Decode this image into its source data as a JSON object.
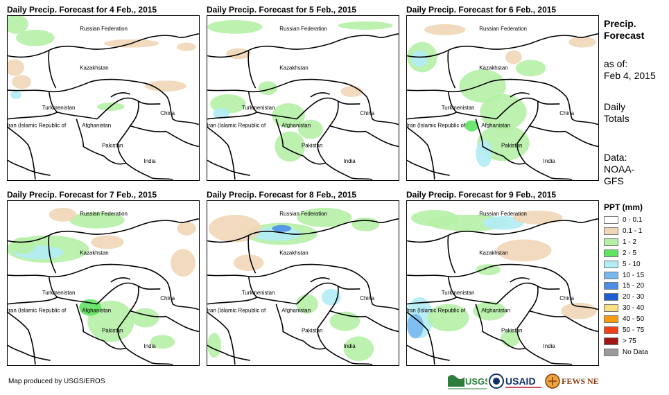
{
  "panels": [
    {
      "title": "Daily Precip. Forecast for 4 Feb., 2015"
    },
    {
      "title": "Daily Precip. Forecast for 5 Feb., 2015"
    },
    {
      "title": "Daily Precip. Forecast for 6 Feb., 2015"
    },
    {
      "title": "Daily Precip. Forecast for 7 Feb., 2015"
    },
    {
      "title": "Daily Precip. Forecast for 8 Feb., 2015"
    },
    {
      "title": "Daily Precip. Forecast for 9 Feb., 2015"
    }
  ],
  "country_labels": {
    "russia": "Russian Federation",
    "kazakhstan": "Kazakhstan",
    "turkmenistan": "Turkmenistan",
    "iran": "Iran (Islamic Republic of",
    "afghanistan": "Afghanistan",
    "china": "China",
    "pakistan": "Pakistan",
    "india": "India"
  },
  "side": {
    "title_line1": "Precip.",
    "title_line2": "Forecast",
    "asof_line1": "as of:",
    "asof_line2": "Feb 4, 2015",
    "totals_line1": "Daily",
    "totals_line2": "Totals",
    "data_line1": "Data:",
    "data_line2": "NOAA-",
    "data_line3": "GFS"
  },
  "legend": {
    "title": "PPT (mm)",
    "items": [
      {
        "label": "0 - 0.1",
        "color": "#ffffff"
      },
      {
        "label": "0.1 - 1",
        "color": "#f0d6b6"
      },
      {
        "label": "1 - 2",
        "color": "#b6f0a6"
      },
      {
        "label": "2 - 5",
        "color": "#62e262"
      },
      {
        "label": "5 - 10",
        "color": "#b2ecf6"
      },
      {
        "label": "10 - 15",
        "color": "#78b8ee"
      },
      {
        "label": "15 - 20",
        "color": "#4c8ee6"
      },
      {
        "label": "20 - 30",
        "color": "#1c5cd6"
      },
      {
        "label": "30 - 40",
        "color": "#f8e07e"
      },
      {
        "label": "40 - 50",
        "color": "#f89c0e"
      },
      {
        "label": "50 - 75",
        "color": "#f04014"
      },
      {
        "label": "> 75",
        "color": "#a01616"
      },
      {
        "label": "No Data",
        "color": "#9a9a9a"
      }
    ]
  },
  "footer": {
    "credit": "Map produced by USGS/EROS",
    "logo_usgs": "USGS",
    "logo_usaid": "USAID",
    "logo_fewsnet": "FEWS NET"
  }
}
